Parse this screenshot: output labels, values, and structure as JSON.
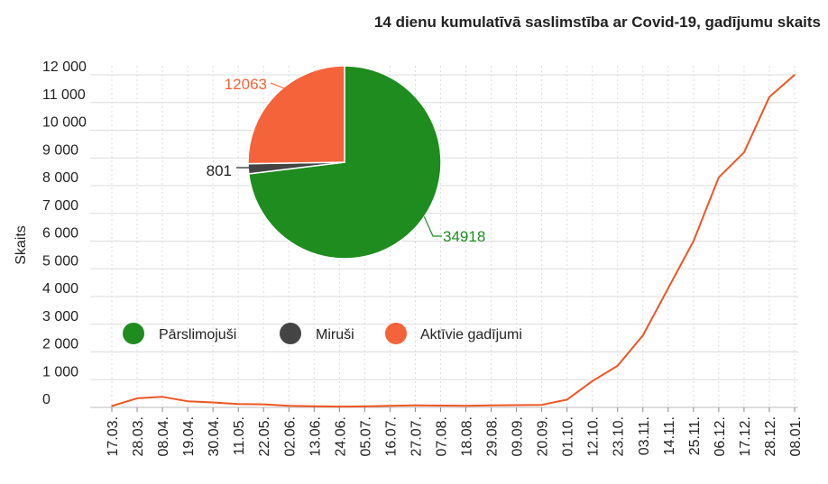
{
  "chart_data": [
    {
      "type": "line",
      "title": "14 dienu kumulatīvā saslimstība ar Covid-19, gadījumu skaits",
      "ylabel": "Skaits",
      "xlabel": "",
      "ylim": [
        0,
        12500
      ],
      "y_ticks": [
        "0",
        "1 000",
        "2 000",
        "3 000",
        "4 000",
        "5 000",
        "6 000",
        "7 000",
        "8 000",
        "9 000",
        "10 000",
        "11 000",
        "12 000"
      ],
      "y_tick_values": [
        0,
        1000,
        2000,
        3000,
        4000,
        5000,
        6000,
        7000,
        8000,
        9000,
        10000,
        11000,
        12000
      ],
      "categories": [
        "17.03.",
        "28.03.",
        "08.04.",
        "19.04.",
        "30.04.",
        "11.05.",
        "22.05.",
        "02.06.",
        "13.06.",
        "24.06.",
        "05.07.",
        "16.07.",
        "27.07.",
        "07.08.",
        "18.08.",
        "29.08.",
        "09.09.",
        "20.09.",
        "01.10.",
        "12.10.",
        "23.10.",
        "03.11.",
        "14.11.",
        "25.11.",
        "06.12.",
        "17.12.",
        "28.12.",
        "08.01."
      ],
      "grid": true,
      "line_color": "#ee5522",
      "series": [
        {
          "values": [
            50,
            330,
            380,
            220,
            180,
            120,
            110,
            60,
            40,
            30,
            35,
            60,
            70,
            65,
            60,
            70,
            80,
            90,
            280,
            950,
            1500,
            2600,
            4300,
            6000,
            8300,
            9200,
            11200,
            12000
          ]
        }
      ]
    },
    {
      "type": "pie",
      "slices": [
        {
          "label": "Pārslimojuši",
          "value": 34918,
          "value_label": "34918",
          "color": "#1e8c1e"
        },
        {
          "label": "Miruši",
          "value": 801,
          "value_label": "801",
          "color": "#444444"
        },
        {
          "label": "Aktīvie gadījumi",
          "value": 12063,
          "value_label": "12063",
          "color": "#f5633a"
        }
      ],
      "legend_placement": "bottom-left",
      "label_colors": {
        "Pārslimojuši": "#1e8c1e",
        "Miruši": "#222222",
        "Aktīvie gadījumi": "#f5633a"
      }
    }
  ]
}
